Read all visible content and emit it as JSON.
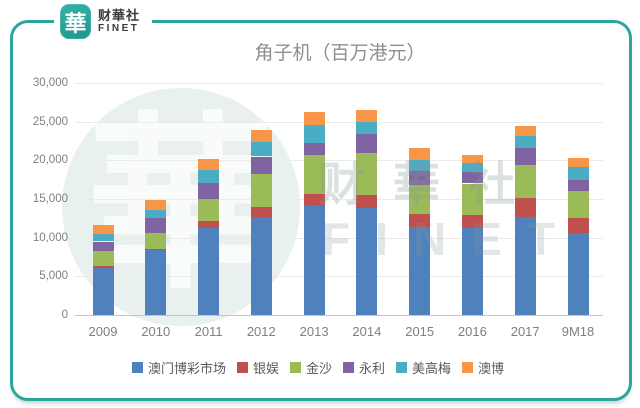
{
  "brand": {
    "logo_glyph": "華",
    "name": "财華社",
    "sub_name": "FINET"
  },
  "watermark": {
    "circle_glyph": "華",
    "text": "财華社",
    "subtext": "FINET"
  },
  "chart_data": {
    "type": "bar",
    "stacked": true,
    "title": "角子机（百万港元）",
    "unit": "百万港元",
    "categories": [
      "2009",
      "2010",
      "2011",
      "2012",
      "2013",
      "2014",
      "2015",
      "2016",
      "2017",
      "9M18"
    ],
    "series": [
      {
        "name": "澳门博彩市场",
        "color": "#4f81bd",
        "values": [
          6100,
          8400,
          11200,
          12700,
          14200,
          13800,
          11400,
          11200,
          12700,
          10600
        ]
      },
      {
        "name": "银娱",
        "color": "#c0504d",
        "values": [
          200,
          200,
          900,
          1300,
          1500,
          1700,
          1700,
          1700,
          2400,
          1900
        ]
      },
      {
        "name": "金沙",
        "color": "#9bbb59",
        "values": [
          2000,
          2000,
          2900,
          4300,
          5000,
          5500,
          3700,
          4100,
          4300,
          3500
        ]
      },
      {
        "name": "永利",
        "color": "#8064a2",
        "values": [
          1200,
          1900,
          2100,
          2200,
          1600,
          2400,
          1800,
          1500,
          2200,
          1500
        ]
      },
      {
        "name": "美高梅",
        "color": "#4bacc6",
        "values": [
          1000,
          1100,
          1600,
          1900,
          2300,
          1600,
          1400,
          1100,
          1500,
          1700
        ]
      },
      {
        "name": "澳博",
        "color": "#f79646",
        "values": [
          1200,
          1300,
          1500,
          1500,
          1700,
          1500,
          1600,
          1100,
          1300,
          1100
        ]
      }
    ],
    "y_ticks": [
      {
        "value": 0,
        "label": "0"
      },
      {
        "value": 5000,
        "label": "5,000"
      },
      {
        "value": 10000,
        "label": "10,000"
      },
      {
        "value": 15000,
        "label": "15,000"
      },
      {
        "value": 20000,
        "label": "20,000"
      },
      {
        "value": 25000,
        "label": "25,000"
      },
      {
        "value": 30000,
        "label": "30,000"
      }
    ],
    "ylim": [
      0,
      30000
    ],
    "grid": true,
    "legend_position": "bottom"
  },
  "frame_color": "#2ba69d"
}
